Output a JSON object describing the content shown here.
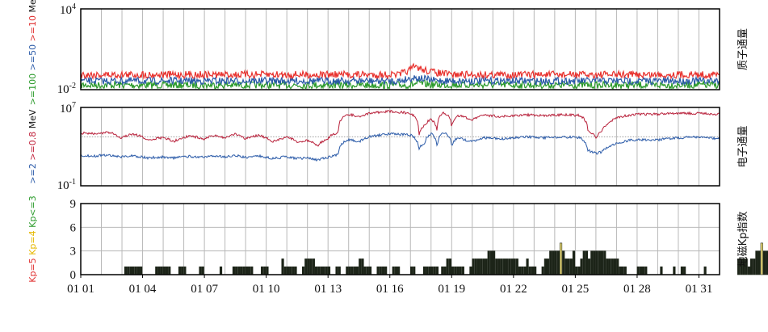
{
  "chart_data": [
    {
      "type": "line",
      "panel": "proton",
      "right_label": "质子通量",
      "y_scale": "log",
      "ylim": [
        0.01,
        10000
      ],
      "y_ticks": [
        {
          "base": "10",
          "exp": "4",
          "value": 10000
        },
        {
          "base": "10",
          "exp": "-2",
          "value": 0.01
        }
      ],
      "ylabel_parts": [
        {
          "text": ">=100",
          "color": "#2a9a2a"
        },
        {
          "text": " >=50",
          "color": "#2a5aa8"
        },
        {
          "text": " >=10",
          "color": "#e03030"
        },
        {
          "text": " MeV",
          "color": "#111111"
        }
      ],
      "series": [
        {
          "name": ">=10 MeV",
          "color": "#e8302c",
          "x": [
            1,
            5,
            10,
            14,
            16.5,
            17,
            17.2,
            17.4,
            17.6,
            18,
            18.5,
            19,
            22,
            25,
            28,
            32
          ],
          "values": [
            0.13,
            0.13,
            0.13,
            0.13,
            0.13,
            0.3,
            0.5,
            0.42,
            0.3,
            0.22,
            0.16,
            0.13,
            0.13,
            0.13,
            0.13,
            0.13
          ]
        },
        {
          "name": ">=50 MeV",
          "color": "#2a5aa8",
          "x": [
            1,
            10,
            16.5,
            17.2,
            17.6,
            18,
            19,
            25,
            32
          ],
          "values": [
            0.045,
            0.045,
            0.045,
            0.08,
            0.065,
            0.05,
            0.045,
            0.045,
            0.045
          ]
        },
        {
          "name": ">=100 MeV",
          "color": "#2a9a2a",
          "x": [
            1,
            10,
            17,
            17.4,
            18,
            25,
            32
          ],
          "values": [
            0.022,
            0.022,
            0.022,
            0.03,
            0.023,
            0.022,
            0.022
          ]
        }
      ]
    },
    {
      "type": "line",
      "panel": "electron",
      "right_label": "电子通量",
      "y_scale": "log",
      "ylim": [
        0.1,
        10000000
      ],
      "y_ticks": [
        {
          "base": "10",
          "exp": "7",
          "value": 10000000
        },
        {
          "base": "10",
          "exp": "-1",
          "value": 0.1
        }
      ],
      "ylabel_parts": [
        {
          "text": ">=2",
          "color": "#2a5aa8"
        },
        {
          "text": " >=0.8",
          "color": "#c0203a"
        },
        {
          "text": " MeV",
          "color": "#111111"
        }
      ],
      "series": [
        {
          "name": ">=0.8 MeV",
          "color": "#b8203a",
          "x": [
            1,
            1.7,
            2.3,
            3,
            3.5,
            4.2,
            5,
            5.5,
            6.3,
            7,
            7.5,
            8,
            8.5,
            9,
            9.6,
            10.3,
            11,
            11.5,
            12,
            12.5,
            13,
            13.5,
            14,
            14.5,
            15,
            16,
            17,
            17.4,
            17.7,
            18,
            18.3,
            18.6,
            19,
            19.3,
            19.6,
            20,
            20.5,
            21.5,
            22.5,
            23.5,
            24.5,
            25.2,
            25.6,
            26,
            26.3,
            26.6,
            27,
            27.5,
            28,
            29,
            30,
            31,
            32
          ],
          "values": [
            24000,
            20000,
            28000,
            7000,
            20000,
            5000,
            8000,
            3000,
            12000,
            6000,
            14000,
            8000,
            20000,
            6000,
            14000,
            3000,
            9000,
            3000,
            4000,
            1000,
            6000,
            30000,
            2000000,
            1000000,
            2500000,
            4000000,
            2500000,
            4000,
            150000,
            600000,
            2000,
            3000000,
            60000,
            1500000,
            1000000,
            600000,
            1500000,
            1200000,
            1800000,
            1500000,
            1800000,
            1500000,
            40000,
            6000,
            40000,
            200000,
            800000,
            1500000,
            2000000,
            2000000,
            2500000,
            2500000,
            2000000
          ]
        },
        {
          "name": ">=2 MeV",
          "color": "#2a5aa8",
          "x": [
            1,
            1.7,
            2.3,
            3,
            3.5,
            4.2,
            5,
            5.5,
            6.3,
            7,
            7.5,
            8,
            8.5,
            9,
            9.6,
            10.3,
            11,
            11.5,
            12,
            12.5,
            13,
            13.5,
            14,
            14.5,
            15,
            16,
            17,
            17.4,
            17.7,
            18,
            18.3,
            18.6,
            19,
            19.3,
            19.6,
            20,
            20.5,
            21.5,
            22.5,
            23.5,
            24.5,
            25.2,
            25.6,
            26,
            26.3,
            26.6,
            27,
            27.5,
            28,
            29,
            30,
            31,
            32
          ],
          "values": [
            130,
            110,
            140,
            90,
            120,
            70,
            90,
            70,
            100,
            80,
            110,
            90,
            120,
            80,
            110,
            60,
            90,
            60,
            70,
            40,
            80,
            150,
            5000,
            3000,
            10000,
            20000,
            15000,
            500,
            2500,
            20000,
            300,
            30000,
            800,
            8000,
            5000,
            3000,
            8000,
            6000,
            10000,
            8000,
            10000,
            8000,
            400,
            200,
            300,
            800,
            2000,
            4000,
            5000,
            5000,
            8000,
            10000,
            6000
          ]
        }
      ]
    },
    {
      "type": "bar",
      "panel": "kp",
      "right_label": "地磁Kp指数",
      "ylim": [
        0,
        9
      ],
      "y_ticks": [
        "0",
        "3",
        "6",
        "9"
      ],
      "ylabel_parts": [
        {
          "text": "Kp=5",
          "color": "#e03030"
        },
        {
          "text": " Kp=4",
          "color": "#e6b800"
        },
        {
          "text": " Kp<=3",
          "color": "#2a9a2a"
        }
      ],
      "x_tick_labels": [
        "01 01",
        "01 04",
        "01 07",
        "01 10",
        "01 13",
        "01 16",
        "01 19",
        "01 22",
        "01 25",
        "01 28",
        "01 31"
      ],
      "x_tick_days": [
        1,
        4,
        7,
        10,
        13,
        16,
        19,
        22,
        25,
        28,
        31
      ],
      "interval_hours": 3,
      "start_day": 1,
      "colors": {
        "kp_le3": "#1c2418",
        "kp_4": "#f2e07a",
        "kp_5": "#e03030"
      },
      "values": [
        0,
        0,
        0,
        0,
        0,
        0,
        0,
        0,
        0,
        0,
        0,
        0,
        0,
        0,
        0,
        0,
        0,
        1,
        1,
        1,
        1,
        1,
        1,
        1,
        0,
        0,
        0,
        0,
        0,
        1,
        1,
        1,
        1,
        1,
        1,
        0,
        0,
        0,
        1,
        1,
        1,
        0,
        0,
        0,
        0,
        0,
        1,
        1,
        0,
        0,
        0,
        0,
        0,
        0,
        1,
        0,
        0,
        0,
        0,
        1,
        1,
        1,
        1,
        1,
        1,
        1,
        1,
        0,
        0,
        0,
        1,
        1,
        1,
        0,
        0,
        0,
        0,
        0,
        2,
        1,
        1,
        1,
        1,
        1,
        0,
        0,
        1,
        2,
        2,
        2,
        2,
        1,
        1,
        1,
        1,
        1,
        1,
        0,
        0,
        1,
        1,
        0,
        0,
        1,
        1,
        1,
        1,
        1,
        2,
        2,
        1,
        1,
        1,
        0,
        0,
        1,
        1,
        1,
        1,
        0,
        0,
        1,
        1,
        1,
        0,
        0,
        0,
        0,
        1,
        1,
        0,
        0,
        0,
        1,
        1,
        1,
        1,
        1,
        1,
        0,
        1,
        1,
        2,
        2,
        1,
        1,
        1,
        1,
        1,
        0,
        0,
        1,
        2,
        2,
        2,
        2,
        2,
        2,
        3,
        3,
        3,
        2,
        2,
        2,
        2,
        2,
        2,
        2,
        2,
        2,
        1,
        1,
        1,
        2,
        1,
        1,
        1,
        0,
        0,
        1,
        2,
        2,
        3,
        3,
        3,
        3,
        4,
        3,
        2,
        2,
        2,
        3,
        1,
        1,
        2,
        3,
        3,
        2,
        3,
        3,
        3,
        3,
        3,
        3,
        2,
        2,
        2,
        2,
        2,
        1,
        1,
        1,
        0,
        0,
        0,
        0,
        1,
        1,
        1,
        1,
        0,
        0,
        0,
        0,
        0,
        1,
        0,
        0,
        0,
        0,
        1,
        0,
        0,
        1,
        1,
        0,
        0,
        0,
        0,
        0,
        0,
        0,
        1,
        0,
        0,
        0,
        0,
        0,
        0,
        0,
        0,
        0,
        0,
        0,
        0,
        2,
        2,
        2,
        2,
        1,
        2,
        2,
        3,
        3,
        4,
        3,
        3,
        3,
        4,
        4,
        3,
        3,
        2,
        2,
        2,
        1,
        1,
        1,
        2,
        2,
        1,
        1,
        1,
        2,
        0,
        0,
        0,
        1,
        1,
        0,
        0,
        0,
        0,
        0,
        0,
        0,
        0,
        0,
        1,
        0,
        0,
        0,
        0,
        0,
        0,
        0,
        0,
        0,
        0,
        0,
        0,
        0,
        0,
        0,
        0,
        1,
        1,
        1
      ]
    }
  ]
}
